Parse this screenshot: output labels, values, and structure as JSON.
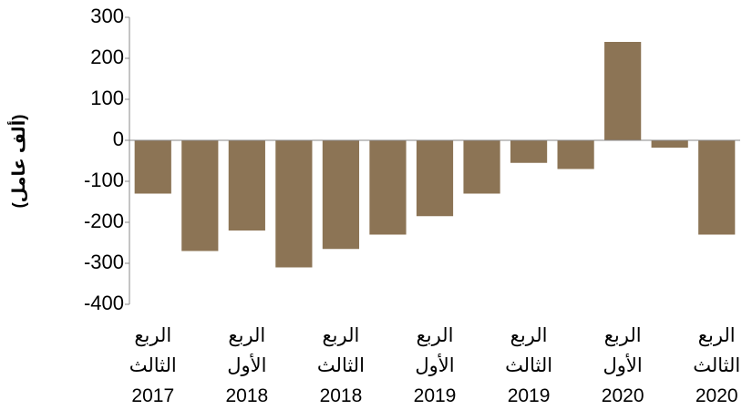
{
  "chart_data": {
    "type": "bar",
    "y_label": "(ألف عامل)",
    "categories": [
      "الربع\nالثالث\n2017",
      null,
      "الربع\nالأول\n2018",
      null,
      "الربع\nالثالث\n2018",
      null,
      "الربع\nالأول\n2019",
      null,
      "الربع\nالثالث\n2019",
      null,
      "الربع\nالأول\n2020",
      null,
      "الربع\nالثالث\n2020"
    ],
    "values": [
      -130,
      -270,
      -220,
      -310,
      -265,
      -230,
      -185,
      -130,
      -55,
      -70,
      240,
      -18,
      -230
    ],
    "color": "#8c7455",
    "ylim": [
      -400,
      300
    ],
    "yticks": [
      -400,
      -300,
      -200,
      -100,
      0,
      100,
      200,
      300
    ],
    "grid": false
  }
}
